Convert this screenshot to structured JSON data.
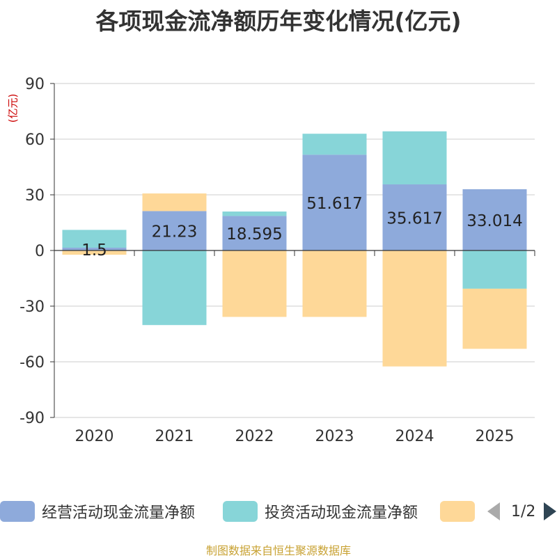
{
  "chart_data": {
    "type": "bar",
    "stacked": true,
    "title": "各项现金流净额历年变化情况(亿元)",
    "ylabel": "(亿元)",
    "ylim": [
      -90,
      90
    ],
    "yticks": [
      90,
      60,
      30,
      0,
      -30,
      -60,
      -90
    ],
    "categories": [
      "2020",
      "2021",
      "2022",
      "2023",
      "2024",
      "2025"
    ],
    "series": [
      {
        "name": "经营活动现金流量净额",
        "color": "#8eaadb",
        "values": [
          1.5,
          21.23,
          18.595,
          51.617,
          35.617,
          33.014
        ],
        "labels": [
          "1.5",
          "21.23",
          "18.595",
          "51.617",
          "35.617",
          "33.014"
        ]
      },
      {
        "name": "投资活动现金流量净额",
        "color": "#87d5d8",
        "values": [
          9.6,
          -40.2,
          2.4,
          11.3,
          28.6,
          -20.6
        ]
      },
      {
        "name": "",
        "color": "#fed898",
        "values": [
          -2.3,
          9.5,
          -35.8,
          -35.8,
          -62.5,
          -32.4
        ]
      }
    ]
  },
  "legend": {
    "page": "1/2"
  },
  "source": "制图数据来自恒生聚源数据库"
}
